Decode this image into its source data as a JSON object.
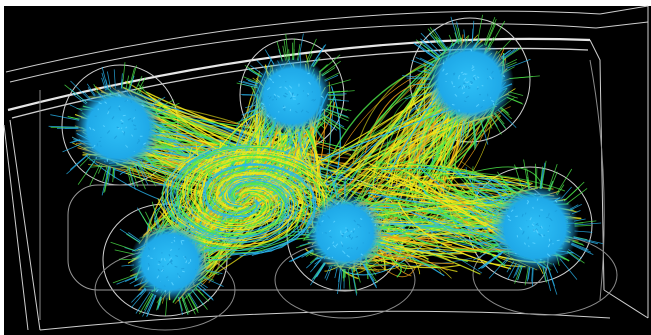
{
  "scene": {
    "description_text": "",
    "colors": {
      "background": "#000000",
      "wireframe": "#d8d8d8",
      "wireframe_dim": "#8a8a8a",
      "border_white": "#ffffff",
      "stream_cyan": "#29b6f0",
      "stream_green": "#4ee84a",
      "stream_yellow": "#f2e81a",
      "stream_orange": "#f0a018"
    },
    "icons": [
      "flow-streamlines-visualization"
    ]
  }
}
